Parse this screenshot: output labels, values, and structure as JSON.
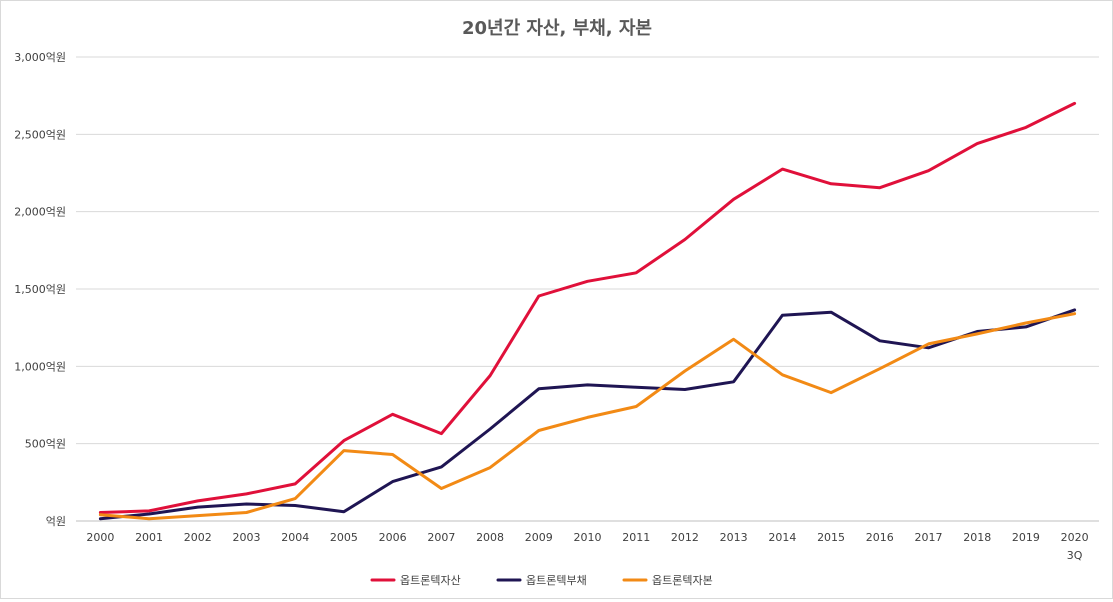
{
  "chart_data": {
    "type": "line",
    "title": "20년간 자산, 부채, 자본",
    "xlabel": "",
    "ylabel": "",
    "ylim": [
      0,
      3000
    ],
    "y_ticks": [
      {
        "value": 0,
        "label": "억원"
      },
      {
        "value": 500,
        "label": "500억원"
      },
      {
        "value": 1000,
        "label": "1,000억원"
      },
      {
        "value": 1500,
        "label": "1,500억원"
      },
      {
        "value": 2000,
        "label": "2,000억원"
      },
      {
        "value": 2500,
        "label": "2,500억원"
      },
      {
        "value": 3000,
        "label": "3,000억원"
      }
    ],
    "categories": [
      {
        "label": "2000",
        "sub": ""
      },
      {
        "label": "2001",
        "sub": ""
      },
      {
        "label": "2002",
        "sub": ""
      },
      {
        "label": "2003",
        "sub": ""
      },
      {
        "label": "2004",
        "sub": ""
      },
      {
        "label": "2005",
        "sub": ""
      },
      {
        "label": "2006",
        "sub": ""
      },
      {
        "label": "2007",
        "sub": ""
      },
      {
        "label": "2008",
        "sub": ""
      },
      {
        "label": "2009",
        "sub": ""
      },
      {
        "label": "2010",
        "sub": ""
      },
      {
        "label": "2011",
        "sub": ""
      },
      {
        "label": "2012",
        "sub": ""
      },
      {
        "label": "2013",
        "sub": ""
      },
      {
        "label": "2014",
        "sub": ""
      },
      {
        "label": "2015",
        "sub": ""
      },
      {
        "label": "2016",
        "sub": ""
      },
      {
        "label": "2017",
        "sub": ""
      },
      {
        "label": "2018",
        "sub": ""
      },
      {
        "label": "2019",
        "sub": ""
      },
      {
        "label": "2020",
        "sub": "3Q"
      }
    ],
    "series": [
      {
        "name": "옵트론텍자산",
        "color": "#e0103a",
        "values": [
          55,
          65,
          130,
          175,
          240,
          520,
          690,
          565,
          940,
          1455,
          1550,
          1605,
          1820,
          2080,
          2275,
          2180,
          2155,
          2265,
          2440,
          2545,
          2700
        ]
      },
      {
        "name": "옵트론텍부채",
        "color": "#1f1553",
        "values": [
          15,
          45,
          90,
          110,
          100,
          60,
          255,
          350,
          595,
          855,
          880,
          865,
          850,
          900,
          1330,
          1350,
          1165,
          1120,
          1225,
          1255,
          1365
        ]
      },
      {
        "name": "옵트론텍자본",
        "color": "#f28a15",
        "values": [
          40,
          15,
          35,
          55,
          145,
          455,
          430,
          210,
          345,
          585,
          670,
          740,
          970,
          1175,
          945,
          830,
          985,
          1145,
          1210,
          1280,
          1340
        ]
      }
    ],
    "legend_position": "bottom",
    "grid": true
  }
}
